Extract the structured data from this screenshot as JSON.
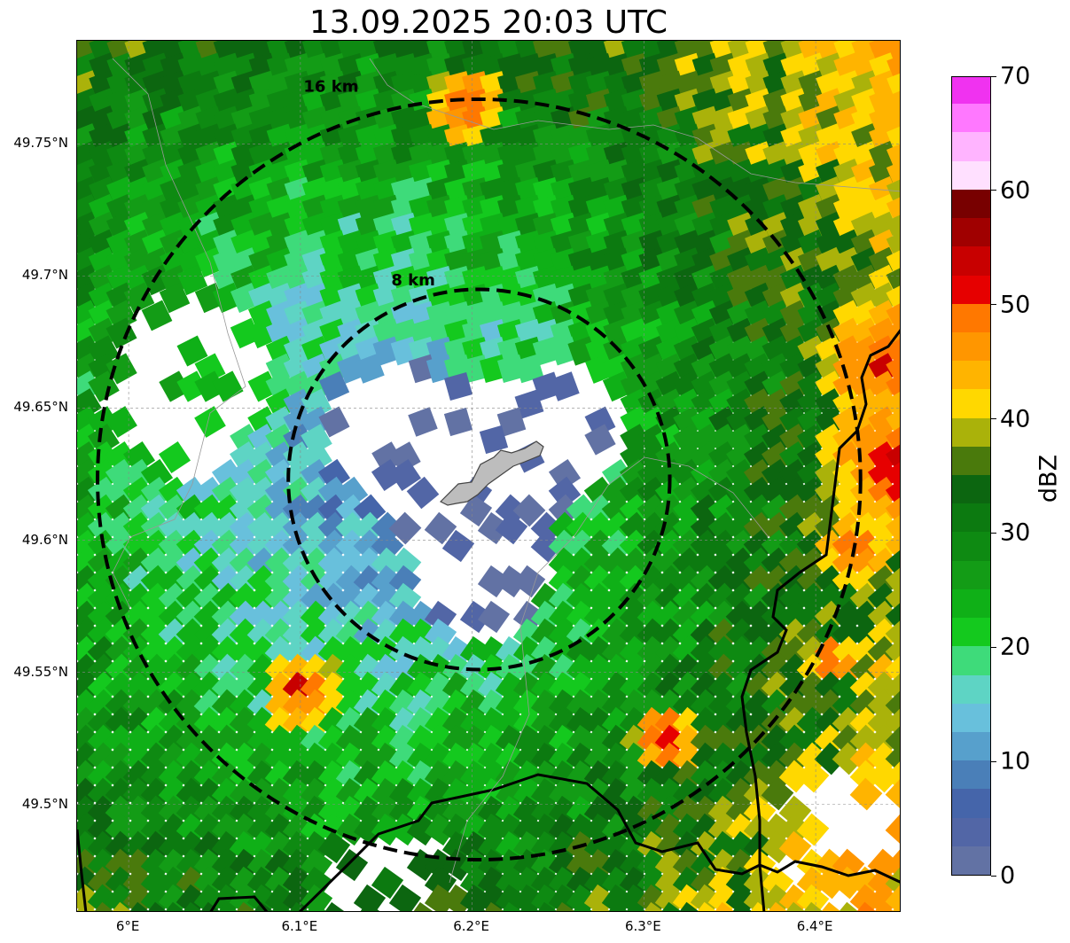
{
  "title": "13.09.2025 20:03 UTC",
  "map": {
    "lon_range": [
      5.97,
      6.45
    ],
    "lat_range": [
      49.459,
      49.789
    ],
    "center": {
      "lon": 6.204,
      "lat": 49.623
    },
    "lat_ticks": [
      {
        "value": 49.75,
        "label": "49.75°N"
      },
      {
        "value": 49.7,
        "label": "49.7°N"
      },
      {
        "value": 49.65,
        "label": "49.65°N"
      },
      {
        "value": 49.6,
        "label": "49.6°N"
      },
      {
        "value": 49.55,
        "label": "49.55°N"
      },
      {
        "value": 49.5,
        "label": "49.5°N"
      }
    ],
    "lon_ticks": [
      {
        "value": 6.0,
        "label": "6°E"
      },
      {
        "value": 6.1,
        "label": "6.1°E"
      },
      {
        "value": 6.2,
        "label": "6.2°E"
      },
      {
        "value": 6.3,
        "label": "6.3°E"
      },
      {
        "value": 6.4,
        "label": "6.4°E"
      }
    ],
    "range_rings": [
      {
        "radius_km": 8,
        "label": "8 km"
      },
      {
        "radius_km": 16,
        "label": "16 km"
      }
    ],
    "gridlines": true,
    "city_fill": "#bdbdbd",
    "border_color": "#000000"
  },
  "colorbar": {
    "label": "dBZ",
    "min": 0,
    "max": 70,
    "ticks": [
      {
        "value": 0,
        "label": "0"
      },
      {
        "value": 10,
        "label": "10"
      },
      {
        "value": 20,
        "label": "20"
      },
      {
        "value": 30,
        "label": "30"
      },
      {
        "value": 40,
        "label": "40"
      },
      {
        "value": 50,
        "label": "50"
      },
      {
        "value": 60,
        "label": "60"
      },
      {
        "value": 70,
        "label": "70"
      }
    ],
    "colors": [
      "#6272a4",
      "#5266a6",
      "#4565aa",
      "#4a7fb8",
      "#57a0cc",
      "#68c0dc",
      "#5ed4c4",
      "#3edb7a",
      "#14c91e",
      "#0fb017",
      "#139c16",
      "#0e8a12",
      "#0c7a10",
      "#0c6610",
      "#4a7a0c",
      "#aab20a",
      "#ffd800",
      "#ffb400",
      "#ff9600",
      "#ff7800",
      "#e60000",
      "#c80000",
      "#a00000",
      "#780000",
      "#ffe0ff",
      "#ffb4ff",
      "#ff78ff",
      "#f032f0"
    ]
  }
}
